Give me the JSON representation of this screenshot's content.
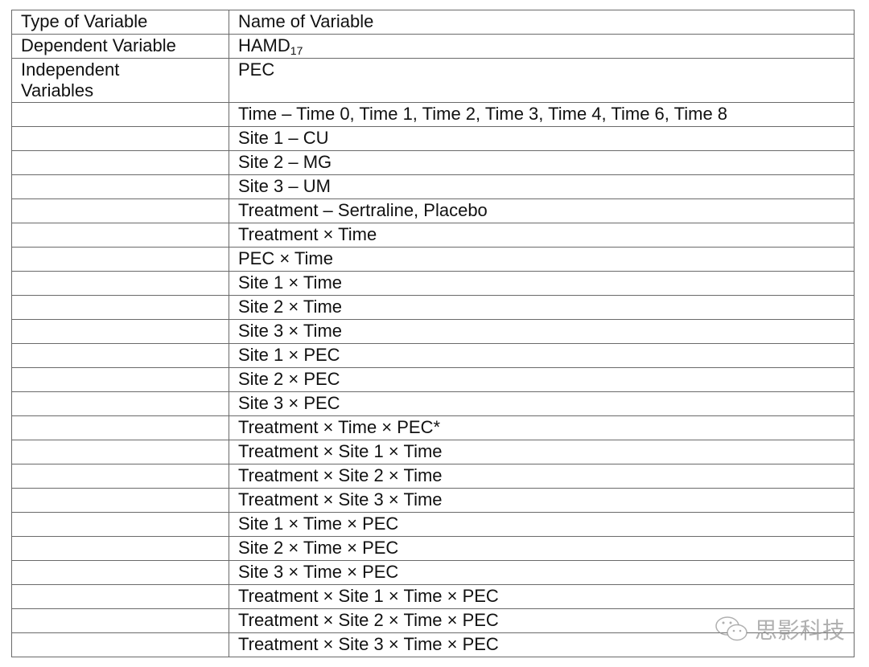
{
  "header": {
    "type": "Type of Variable",
    "name": "Name of Variable"
  },
  "dependent": {
    "type": "Dependent Variable",
    "name": "HAMD",
    "subscript": "17"
  },
  "independent": {
    "type": "Independent Variables",
    "first": "PEC"
  },
  "rows": [
    "Time – Time 0, Time 1, Time 2, Time 3, Time 4, Time 6, Time 8",
    "Site 1 – CU",
    "Site 2 – MG",
    "Site 3 – UM",
    "Treatment – Sertraline, Placebo",
    "Treatment × Time",
    "PEC × Time",
    "Site 1 × Time",
    "Site 2 × Time",
    "Site 3 × Time",
    "Site 1 × PEC",
    "Site 2 × PEC",
    "Site 3 × PEC",
    "Treatment × Time × PEC*",
    "Treatment × Site 1 × Time",
    "Treatment × Site 2 × Time",
    "Treatment × Site 3 × Time",
    "Site 1 × Time × PEC",
    "Site 2 × Time × PEC",
    "Site 3 × Time × PEC",
    "Treatment × Site 1 × Time × PEC",
    "Treatment × Site 2 × Time × PEC",
    "Treatment × Site 3 × Time × PEC"
  ],
  "watermark": {
    "text": "思影科技",
    "icon": "wechat-icon"
  }
}
